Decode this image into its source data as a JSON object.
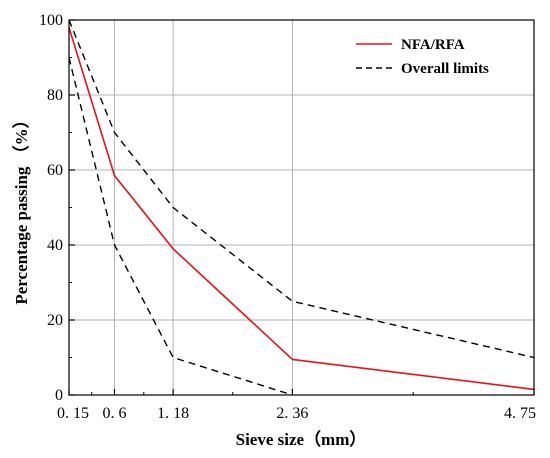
{
  "chart_data": {
    "type": "line",
    "title": "",
    "xlabel": "Sieve size（mm）",
    "ylabel": "Percentage passing （%）",
    "xlim": [
      0.15,
      4.75
    ],
    "ylim": [
      0,
      100
    ],
    "xticks": [
      0.15,
      0.6,
      1.18,
      2.36,
      4.75
    ],
    "xtick_labels": [
      "0. 15",
      "0. 6",
      "1. 18",
      "2. 36",
      "4. 75"
    ],
    "yticks": [
      0,
      20,
      40,
      60,
      80,
      100
    ],
    "ytick_labels": [
      "0",
      "20",
      "40",
      "60",
      "80",
      "100"
    ],
    "grid": true,
    "legend_position": "top-right",
    "series": [
      {
        "name": "NFA/RFA",
        "style": "solid",
        "color": "#e8101a",
        "x": [
          0.15,
          0.6,
          1.18,
          2.36,
          4.75
        ],
        "y": [
          98,
          58.5,
          39,
          9.5,
          1.5
        ]
      },
      {
        "name": "Overall limits",
        "style": "dashed",
        "color": "#000000",
        "x": [
          0.15,
          0.6,
          1.18,
          2.36,
          4.75
        ],
        "y": [
          100,
          70,
          50,
          25,
          10
        ]
      },
      {
        "name": "",
        "style": "dashed",
        "color": "#000000",
        "x": [
          0.15,
          0.6,
          1.18,
          2.36
        ],
        "y": [
          90,
          40,
          10,
          0
        ]
      }
    ]
  }
}
